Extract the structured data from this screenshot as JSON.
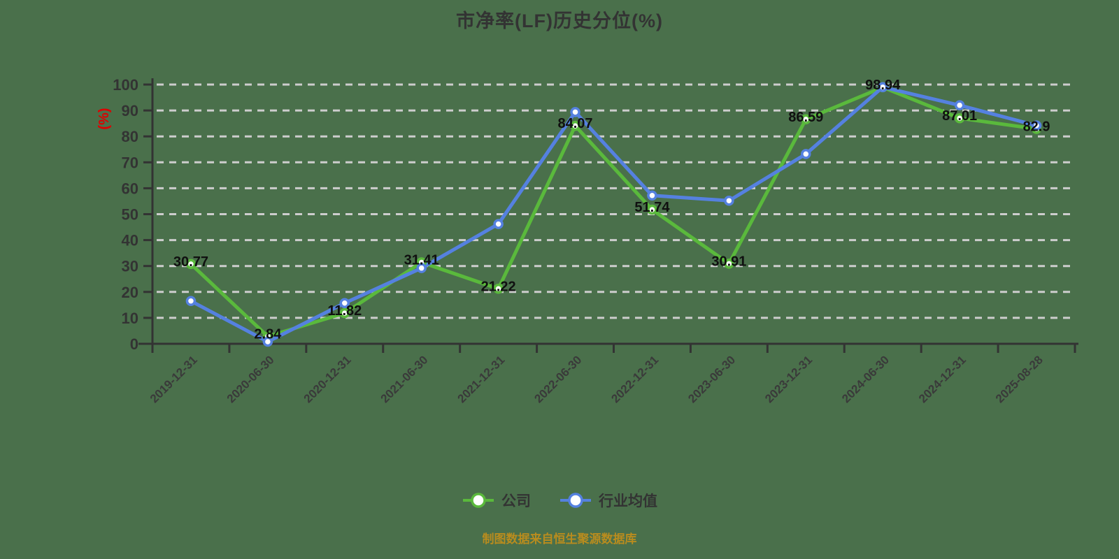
{
  "title": "市净率(LF)历史分位(%)",
  "footer": "制图数据来自恒生聚源数据库",
  "colors": {
    "background": "#4A704B",
    "company": "#5AB93C",
    "industry": "#5581E0",
    "grid": "#CDCDCD",
    "axis": "#333333",
    "tick_text": "#3A3A3A",
    "value_label": "#101010",
    "unit_label": "#DD0000",
    "title_text": "#333333",
    "footer_text": "#B98C1E",
    "marker_fill": "#FFFFFF"
  },
  "chart_data": {
    "type": "line",
    "title": "市净率(LF)历史分位(%)",
    "xlabel": "",
    "ylabel": "(%)",
    "ylim": [
      0,
      100
    ],
    "y_ticks": [
      0,
      10,
      20,
      30,
      40,
      50,
      60,
      70,
      80,
      90,
      100
    ],
    "grid": "horizontal-dashed",
    "legend_position": "bottom",
    "categories": [
      "2019-12-31",
      "2020-06-30",
      "2020-12-31",
      "2021-06-30",
      "2021-12-31",
      "2022-06-30",
      "2022-12-31",
      "2023-06-30",
      "2023-12-31",
      "2024-06-30",
      "2024-12-31",
      "2025-08-28"
    ],
    "series": [
      {
        "key": "company",
        "name": "公司",
        "color": "#5AB93C",
        "show_labels": true,
        "values": [
          30.77,
          2.84,
          11.82,
          31.41,
          21.22,
          84.07,
          51.74,
          30.91,
          86.59,
          98.94,
          87.01,
          82.9
        ]
      },
      {
        "key": "industry-avg",
        "name": "行业均值",
        "color": "#5581E0",
        "show_labels": false,
        "values": [
          16.5,
          0.8,
          15.7,
          29.2,
          46.2,
          89.4,
          57.2,
          55.2,
          73.2,
          99.0,
          92.0,
          84.2
        ]
      }
    ]
  }
}
